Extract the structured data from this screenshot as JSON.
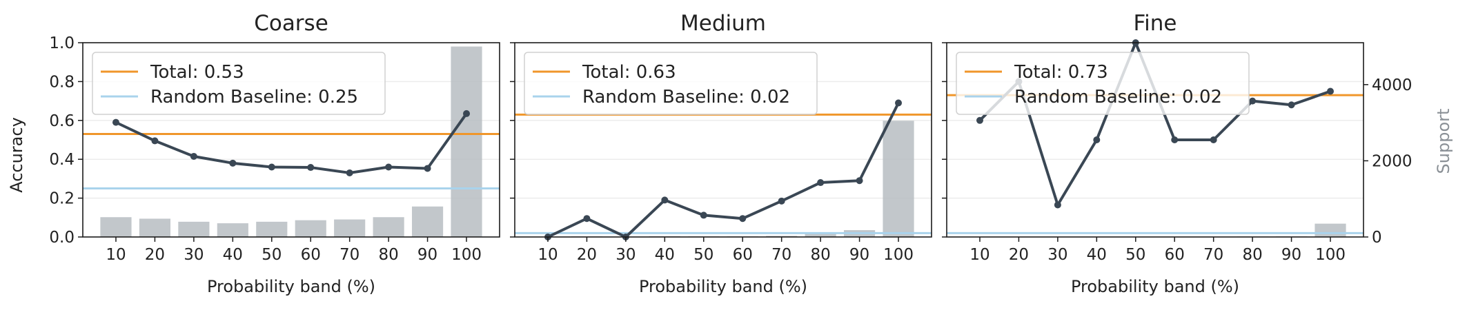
{
  "chart_data": [
    {
      "type": "bar+line",
      "title": "Coarse",
      "xlabel": "Probability band (%)",
      "ylabel": "Accuracy",
      "categories": [
        "10",
        "20",
        "30",
        "40",
        "50",
        "60",
        "70",
        "80",
        "90",
        "100"
      ],
      "accuracy": [
        0.59,
        0.495,
        0.415,
        0.38,
        0.36,
        0.358,
        0.33,
        0.36,
        0.353,
        0.635
      ],
      "support": [
        520,
        480,
        400,
        360,
        400,
        440,
        460,
        520,
        800,
        5000
      ],
      "total": {
        "label": "Total: 0.53",
        "value": 0.53
      },
      "baseline": {
        "label": "Random Baseline: 0.25",
        "value": 0.25
      },
      "ylim": [
        0,
        1.0
      ],
      "support_lim": [
        0,
        5100
      ],
      "yticks": [
        "0.0",
        "0.2",
        "0.4",
        "0.6",
        "0.8",
        "1.0"
      ],
      "legend": "top-left"
    },
    {
      "type": "bar+line",
      "title": "Medium",
      "xlabel": "Probability band (%)",
      "ylabel": "",
      "categories": [
        "10",
        "20",
        "30",
        "40",
        "50",
        "60",
        "70",
        "80",
        "90",
        "100"
      ],
      "accuracy": [
        0.0,
        0.095,
        0.0,
        0.19,
        0.112,
        0.095,
        0.185,
        0.28,
        0.29,
        0.69
      ],
      "support": [
        5,
        15,
        5,
        20,
        15,
        15,
        30,
        120,
        180,
        3050
      ],
      "total": {
        "label": "Total: 0.63",
        "value": 0.63
      },
      "baseline": {
        "label": "Random Baseline: 0.02",
        "value": 0.02
      },
      "ylim": [
        0,
        1.0
      ],
      "support_lim": [
        0,
        5100
      ],
      "legend": "top-left"
    },
    {
      "type": "bar+line",
      "title": "Fine",
      "xlabel": "Probability band (%)",
      "ylabel": "",
      "y2label": "Support",
      "categories": [
        "10",
        "20",
        "30",
        "40",
        "50",
        "60",
        "70",
        "80",
        "90",
        "100"
      ],
      "accuracy": [
        0.6,
        0.8,
        0.165,
        0.5,
        1.0,
        0.5,
        0.5,
        0.7,
        0.68,
        0.75
      ],
      "support": [
        2,
        4,
        5,
        6,
        4,
        8,
        8,
        12,
        15,
        350
      ],
      "total": {
        "label": "Total: 0.73",
        "value": 0.73
      },
      "baseline": {
        "label": "Random Baseline: 0.02",
        "value": 0.02
      },
      "ylim": [
        0,
        1.0
      ],
      "support_lim": [
        0,
        5100
      ],
      "y2ticks": [
        "0",
        "2000",
        "4000"
      ],
      "legend": "top-left"
    }
  ],
  "colors": {
    "line": "#3a4754",
    "bar": "#b7bdc2",
    "total": "#f0962a",
    "baseline": "#a9d3ec",
    "grid": "#ececec"
  }
}
